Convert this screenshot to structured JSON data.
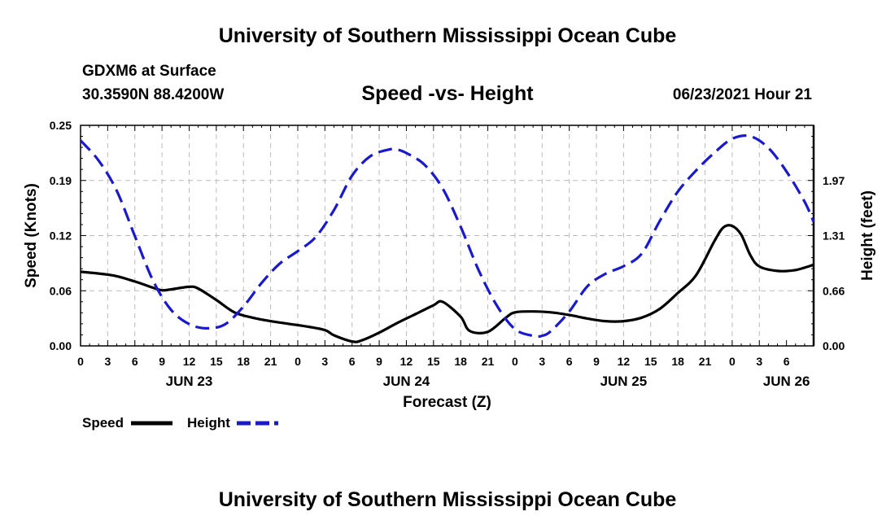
{
  "header": {
    "title": "University of Southern Mississippi Ocean Cube",
    "station": "GDXM6 at Surface",
    "coords": "30.3590N  88.4200W",
    "subtitle": "Speed -vs- Height",
    "datetime": "06/23/2021 Hour 21"
  },
  "footer": {
    "title": "University of Southern Mississippi Ocean Cube"
  },
  "colors": {
    "speed": "#000000",
    "height": "#1a1acc",
    "grid": "#bbbbbb"
  },
  "chart_data": {
    "type": "line",
    "xlabel": "Forecast (Z)",
    "ylabel_left": "Speed (Knots)",
    "ylabel_right": "Height (feet)",
    "x_hours_range": [
      0,
      81
    ],
    "x_ticks": [
      "0",
      "3",
      "6",
      "9",
      "12",
      "15",
      "18",
      "21",
      "0",
      "3",
      "6",
      "9",
      "12",
      "15",
      "18",
      "21",
      "0",
      "3",
      "6",
      "9",
      "12",
      "15",
      "18",
      "21",
      "0",
      "3",
      "6"
    ],
    "date_labels": [
      {
        "label": "JUN 23",
        "hour": 12
      },
      {
        "label": "JUN 24",
        "hour": 36
      },
      {
        "label": "JUN 25",
        "hour": 60
      },
      {
        "label": "JUN 26",
        "hour": 78
      }
    ],
    "ylim_left": [
      0,
      0.25
    ],
    "y_ticks_left": [
      "0.00",
      "0.06",
      "0.12",
      "0.19",
      "0.25"
    ],
    "ylim_right": [
      0,
      2.63
    ],
    "y_ticks_right": [
      "0.00",
      "0.66",
      "1.31",
      "1.97"
    ],
    "legend": [
      "Speed",
      "Height"
    ],
    "series": [
      {
        "name": "Speed",
        "style": "solid",
        "x": [
          0,
          2,
          4,
          6,
          8,
          9,
          10,
          12,
          13,
          15,
          17,
          19,
          21,
          23,
          25,
          27,
          28,
          30,
          31,
          33,
          35,
          37,
          39,
          40,
          42,
          43,
          45,
          47,
          48,
          50,
          52,
          54,
          56,
          58,
          60,
          62,
          64,
          66,
          68,
          70,
          71,
          72,
          73,
          74,
          75,
          77,
          79,
          81
        ],
        "values": [
          0.084,
          0.082,
          0.079,
          0.073,
          0.066,
          0.063,
          0.064,
          0.067,
          0.065,
          0.052,
          0.038,
          0.032,
          0.028,
          0.025,
          0.022,
          0.018,
          0.012,
          0.005,
          0.006,
          0.015,
          0.026,
          0.036,
          0.046,
          0.05,
          0.033,
          0.017,
          0.016,
          0.032,
          0.038,
          0.039,
          0.038,
          0.035,
          0.031,
          0.028,
          0.028,
          0.032,
          0.042,
          0.06,
          0.08,
          0.118,
          0.134,
          0.136,
          0.126,
          0.103,
          0.09,
          0.085,
          0.086,
          0.092
        ]
      },
      {
        "name": "Height",
        "style": "dashed",
        "x": [
          0,
          2,
          4,
          6,
          8,
          10,
          12,
          14,
          16,
          18,
          20,
          22,
          24,
          26,
          28,
          30,
          32,
          34,
          35,
          36,
          38,
          40,
          42,
          44,
          46,
          48,
          50,
          51,
          52,
          54,
          56,
          58,
          60,
          62,
          64,
          66,
          68,
          70,
          72,
          74,
          76,
          78,
          80,
          81
        ],
        "values": [
          2.45,
          2.21,
          1.85,
          1.31,
          0.78,
          0.43,
          0.26,
          0.21,
          0.26,
          0.47,
          0.75,
          0.98,
          1.13,
          1.3,
          1.62,
          2.03,
          2.26,
          2.34,
          2.34,
          2.3,
          2.16,
          1.88,
          1.42,
          0.9,
          0.48,
          0.2,
          0.12,
          0.12,
          0.18,
          0.41,
          0.71,
          0.86,
          0.95,
          1.1,
          1.49,
          1.84,
          2.09,
          2.3,
          2.47,
          2.5,
          2.36,
          2.08,
          1.72,
          1.48
        ]
      }
    ]
  }
}
